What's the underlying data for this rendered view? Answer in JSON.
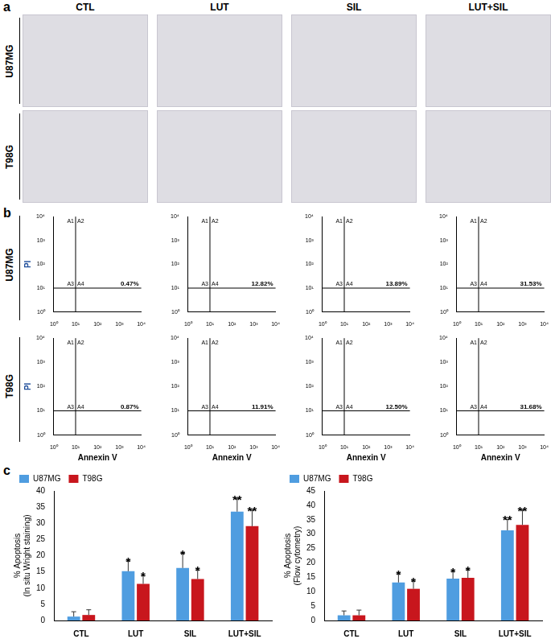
{
  "panel_labels": [
    "a",
    "b",
    "c"
  ],
  "columns": [
    "CTL",
    "LUT",
    "SIL",
    "LUT+SIL"
  ],
  "rows": [
    "U87MG",
    "T98G"
  ],
  "flow_cytometry": {
    "type": "scatter",
    "log": true,
    "x_label": "Annexin V",
    "y_label": "PI",
    "xlim": [
      1,
      10000
    ],
    "ylim": [
      1,
      10000
    ],
    "xticks": [
      {
        "value": 1,
        "label": "10⁰"
      },
      {
        "value": 10,
        "label": "10¹"
      },
      {
        "value": 100,
        "label": "10²"
      },
      {
        "value": 1000,
        "label": "10³"
      },
      {
        "value": 10000,
        "label": "10⁴"
      }
    ],
    "yticks": [
      {
        "value": 1,
        "label": "10⁰"
      },
      {
        "value": 10,
        "label": "10¹"
      },
      {
        "value": 100,
        "label": "10²"
      },
      {
        "value": 1000,
        "label": "10³"
      },
      {
        "value": 10000,
        "label": "10⁴"
      }
    ],
    "gate": {
      "x": 10,
      "y": 10
    },
    "quadrants": [
      "A1",
      "A2",
      "A3",
      "A4"
    ],
    "values": [
      [
        0.47,
        12.82,
        13.89,
        31.53
      ],
      [
        0.87,
        11.91,
        12.5,
        31.68
      ]
    ],
    "value_labels": [
      [
        "0.47%",
        "12.82%",
        "13.89%",
        "31.53%"
      ],
      [
        "0.87%",
        "11.91%",
        "12.50%",
        "31.68%"
      ]
    ]
  },
  "chart_data": [
    {
      "type": "bar",
      "y_label": [
        "% Apoptosis",
        "(In situ Wright staining)"
      ],
      "categories": [
        "CTL",
        "LUT",
        "SIL",
        "LUT+SIL"
      ],
      "series": [
        {
          "name": "U87MG",
          "color": "#4f9de0",
          "values": [
            1.2,
            15.2,
            16.2,
            33.6
          ],
          "errors": [
            1.5,
            3.2,
            4.5,
            4.0
          ],
          "annotations": [
            null,
            "*",
            "*",
            "**"
          ]
        },
        {
          "name": "T98G",
          "color": "#c8161d",
          "values": [
            1.7,
            11.3,
            12.8,
            29.1
          ],
          "errors": [
            1.6,
            2.5,
            2.8,
            5.0
          ],
          "annotations": [
            null,
            "*",
            "*",
            "**"
          ]
        }
      ],
      "ylim": [
        0,
        40
      ],
      "yticks": [
        0,
        5,
        10,
        15,
        20,
        25,
        30,
        35,
        40
      ],
      "grid": false,
      "legend": "top-left"
    },
    {
      "type": "bar",
      "y_label": [
        "% Apoptosis",
        "(Flow cytometry)"
      ],
      "categories": [
        "CTL",
        "LUT",
        "SIL",
        "LUT+SIL"
      ],
      "series": [
        {
          "name": "U87MG",
          "color": "#4f9de0",
          "values": [
            1.8,
            13.2,
            14.5,
            31.3
          ],
          "errors": [
            1.5,
            3.0,
            2.5,
            3.8
          ],
          "annotations": [
            null,
            "*",
            "*",
            "**"
          ]
        },
        {
          "name": "T98G",
          "color": "#c8161d",
          "values": [
            1.8,
            11.0,
            14.8,
            33.2
          ],
          "errors": [
            1.8,
            2.7,
            2.8,
            5.2
          ],
          "annotations": [
            null,
            "*",
            "*",
            "**"
          ]
        }
      ],
      "ylim": [
        0,
        45
      ],
      "yticks": [
        0,
        5,
        10,
        15,
        20,
        25,
        30,
        35,
        40,
        45
      ],
      "grid": false,
      "legend": "top-left"
    }
  ]
}
